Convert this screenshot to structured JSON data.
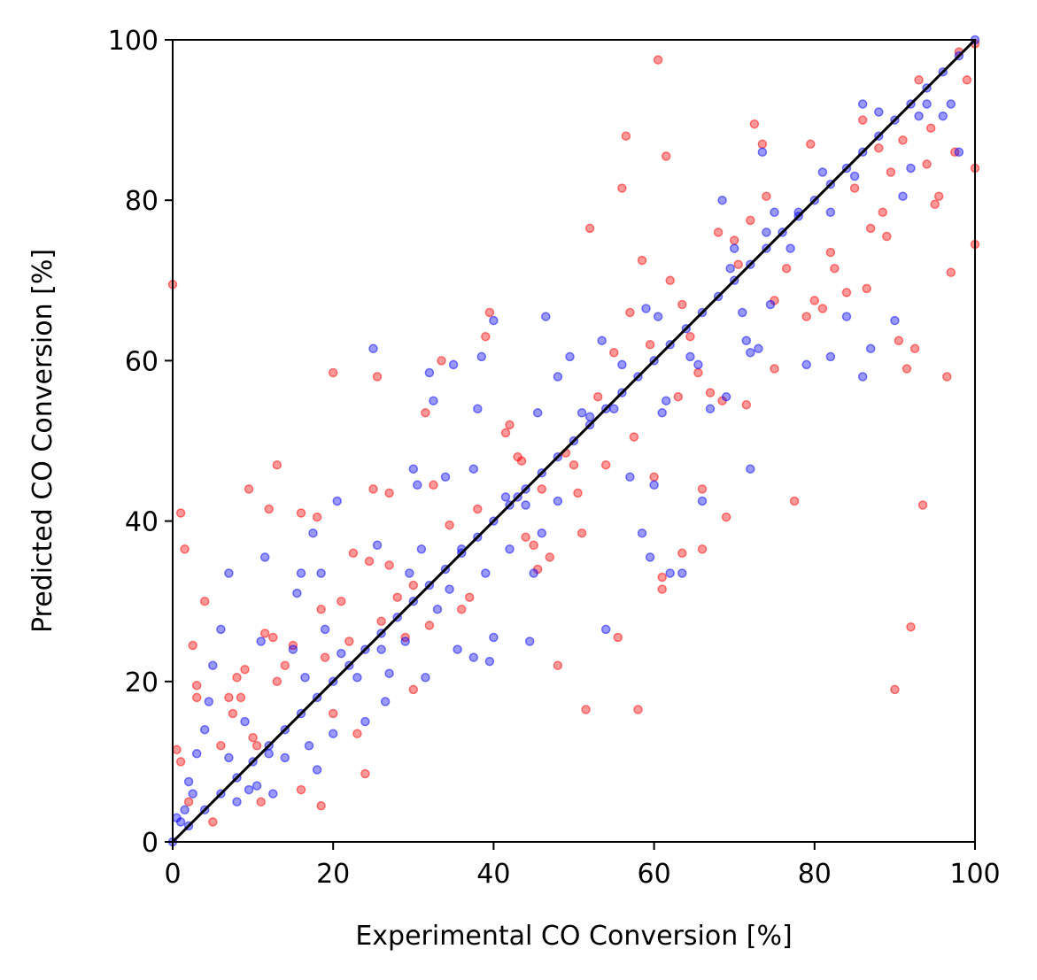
{
  "chart_data": {
    "type": "scatter",
    "title": "",
    "xlabel": "Experimental CO Conversion [%]",
    "ylabel": "Predicted CO Conversion [%]",
    "xlim": [
      0,
      100
    ],
    "ylim": [
      0,
      100
    ],
    "xticks": [
      "0",
      "20",
      "40",
      "60",
      "80",
      "100"
    ],
    "yticks": [
      "0",
      "20",
      "40",
      "60",
      "80",
      "100"
    ],
    "grid": false,
    "legend": "none",
    "parity_line": {
      "from": [
        0,
        0
      ],
      "to": [
        100,
        100
      ],
      "color": "#000000"
    },
    "series": [
      {
        "color": "#ff0000",
        "points": [
          [
            0,
            69.5
          ],
          [
            1,
            41
          ],
          [
            1.5,
            36.5
          ],
          [
            0.5,
            11.5
          ],
          [
            1,
            10
          ],
          [
            2,
            5
          ],
          [
            2.5,
            24.5
          ],
          [
            3,
            19.5
          ],
          [
            3,
            18
          ],
          [
            4,
            30
          ],
          [
            5,
            2.5
          ],
          [
            6,
            12
          ],
          [
            7,
            18
          ],
          [
            7.5,
            16
          ],
          [
            8,
            20.5
          ],
          [
            8.5,
            18
          ],
          [
            9,
            21.5
          ],
          [
            9.5,
            44
          ],
          [
            10,
            13
          ],
          [
            10.5,
            12
          ],
          [
            11,
            5
          ],
          [
            11.5,
            26
          ],
          [
            12,
            41.5
          ],
          [
            12.5,
            25.5
          ],
          [
            13,
            47
          ],
          [
            13,
            20
          ],
          [
            14,
            22
          ],
          [
            15,
            24.5
          ],
          [
            16,
            41
          ],
          [
            16,
            6.5
          ],
          [
            18,
            40.5
          ],
          [
            18.5,
            29
          ],
          [
            18.5,
            4.5
          ],
          [
            19,
            23
          ],
          [
            20,
            58.5
          ],
          [
            20,
            16
          ],
          [
            21,
            30
          ],
          [
            22,
            25
          ],
          [
            22.5,
            36
          ],
          [
            23,
            13.5
          ],
          [
            24,
            8.5
          ],
          [
            24.5,
            35
          ],
          [
            25,
            44
          ],
          [
            25.5,
            58
          ],
          [
            26,
            27.5
          ],
          [
            27,
            43.5
          ],
          [
            27,
            34.5
          ],
          [
            28,
            30.5
          ],
          [
            29,
            25.5
          ],
          [
            30,
            32
          ],
          [
            30,
            19
          ],
          [
            31.5,
            53.5
          ],
          [
            32,
            27
          ],
          [
            32.5,
            44.5
          ],
          [
            33.5,
            60
          ],
          [
            34.5,
            39.5
          ],
          [
            36,
            29
          ],
          [
            37,
            30.5
          ],
          [
            38,
            41.5
          ],
          [
            39,
            63
          ],
          [
            39.5,
            66
          ],
          [
            41.5,
            51
          ],
          [
            42,
            52
          ],
          [
            43,
            48
          ],
          [
            43.5,
            47.5
          ],
          [
            44,
            38
          ],
          [
            45,
            37
          ],
          [
            45.5,
            34
          ],
          [
            46,
            44
          ],
          [
            47,
            35.5
          ],
          [
            48,
            22
          ],
          [
            49,
            48.5
          ],
          [
            50,
            47
          ],
          [
            50.5,
            43.5
          ],
          [
            51,
            38.5
          ],
          [
            51.5,
            16.5
          ],
          [
            52,
            76.5
          ],
          [
            53,
            55.5
          ],
          [
            54,
            47
          ],
          [
            55,
            61
          ],
          [
            55.5,
            25.5
          ],
          [
            56,
            81.5
          ],
          [
            56.5,
            88
          ],
          [
            57,
            66
          ],
          [
            57.5,
            50.5
          ],
          [
            58,
            16.5
          ],
          [
            58.5,
            72.5
          ],
          [
            59.5,
            62
          ],
          [
            60,
            45.5
          ],
          [
            60.5,
            97.5
          ],
          [
            61,
            33
          ],
          [
            61,
            31.5
          ],
          [
            61.5,
            85.5
          ],
          [
            62,
            70
          ],
          [
            63,
            55.5
          ],
          [
            63.5,
            67
          ],
          [
            63.5,
            36
          ],
          [
            64.5,
            63
          ],
          [
            65.5,
            58.5
          ],
          [
            66,
            44
          ],
          [
            66,
            36.5
          ],
          [
            67,
            56
          ],
          [
            68,
            76
          ],
          [
            68.5,
            55
          ],
          [
            69,
            40.5
          ],
          [
            70,
            75
          ],
          [
            70.5,
            72
          ],
          [
            71.5,
            54.5
          ],
          [
            72,
            77.5
          ],
          [
            72.5,
            89.5
          ],
          [
            73.5,
            87
          ],
          [
            74,
            80.5
          ],
          [
            75,
            67.5
          ],
          [
            75,
            59
          ],
          [
            76.5,
            71.5
          ],
          [
            77.5,
            42.5
          ],
          [
            79,
            65.5
          ],
          [
            79.5,
            87
          ],
          [
            80,
            67.5
          ],
          [
            81,
            66.5
          ],
          [
            82,
            73.5
          ],
          [
            82.5,
            71.5
          ],
          [
            84,
            68.5
          ],
          [
            85,
            81.5
          ],
          [
            86,
            90
          ],
          [
            86.5,
            69
          ],
          [
            87,
            76.5
          ],
          [
            88,
            86.5
          ],
          [
            88.5,
            78.5
          ],
          [
            89,
            75.5
          ],
          [
            89.5,
            83.5
          ],
          [
            90,
            19
          ],
          [
            90.5,
            62.5
          ],
          [
            91,
            87.5
          ],
          [
            91.5,
            59
          ],
          [
            92,
            26.8
          ],
          [
            92.5,
            61.5
          ],
          [
            93,
            95
          ],
          [
            93.5,
            42
          ],
          [
            94,
            84.5
          ],
          [
            94.5,
            89
          ],
          [
            95,
            79.5
          ],
          [
            95.5,
            80.5
          ],
          [
            96.5,
            58
          ],
          [
            97,
            71
          ],
          [
            97.5,
            86
          ],
          [
            98,
            98.5
          ],
          [
            99,
            95
          ],
          [
            100,
            84
          ],
          [
            100,
            74.5
          ],
          [
            100,
            99.5
          ]
        ]
      },
      {
        "color": "#0000ff",
        "points": [
          [
            0.5,
            3
          ],
          [
            1,
            2.5
          ],
          [
            1.5,
            4
          ],
          [
            2,
            7.5
          ],
          [
            2.5,
            6
          ],
          [
            3,
            11
          ],
          [
            4,
            14
          ],
          [
            4.5,
            17.5
          ],
          [
            5,
            22
          ],
          [
            6,
            26.5
          ],
          [
            7,
            33.5
          ],
          [
            7,
            10.5
          ],
          [
            8,
            5
          ],
          [
            9,
            15
          ],
          [
            9.5,
            6.5
          ],
          [
            10.5,
            7
          ],
          [
            11,
            25
          ],
          [
            11.5,
            35.5
          ],
          [
            12,
            11
          ],
          [
            12.5,
            6
          ],
          [
            14,
            10.5
          ],
          [
            15,
            24
          ],
          [
            15.5,
            31
          ],
          [
            16,
            33.5
          ],
          [
            16.5,
            20.5
          ],
          [
            17,
            12
          ],
          [
            17.5,
            38.5
          ],
          [
            18,
            9
          ],
          [
            18.5,
            33.5
          ],
          [
            19,
            26.5
          ],
          [
            20,
            13.5
          ],
          [
            20.5,
            42.5
          ],
          [
            21,
            23.5
          ],
          [
            23,
            20.5
          ],
          [
            24,
            15
          ],
          [
            25,
            61.5
          ],
          [
            25.5,
            37
          ],
          [
            26,
            24
          ],
          [
            26.5,
            17.5
          ],
          [
            27,
            21
          ],
          [
            29,
            25
          ],
          [
            29.5,
            33.5
          ],
          [
            30,
            46.5
          ],
          [
            30.5,
            44.5
          ],
          [
            31,
            36.5
          ],
          [
            31.5,
            20.5
          ],
          [
            32,
            58.5
          ],
          [
            32.5,
            55
          ],
          [
            33,
            29
          ],
          [
            34,
            45.5
          ],
          [
            34.5,
            31.5
          ],
          [
            35,
            59.5
          ],
          [
            35.5,
            24
          ],
          [
            36,
            36.5
          ],
          [
            37.5,
            23
          ],
          [
            37.5,
            46.5
          ],
          [
            38,
            54
          ],
          [
            38.5,
            60.5
          ],
          [
            39,
            33.5
          ],
          [
            39.5,
            22.5
          ],
          [
            40,
            65
          ],
          [
            40,
            25.5
          ],
          [
            41.5,
            43
          ],
          [
            42,
            36.5
          ],
          [
            43,
            43
          ],
          [
            44,
            42
          ],
          [
            44.5,
            25
          ],
          [
            45,
            33.5
          ],
          [
            45.5,
            53.5
          ],
          [
            46,
            38.5
          ],
          [
            46.5,
            65.5
          ],
          [
            48,
            58
          ],
          [
            48,
            42.5
          ],
          [
            49.5,
            60.5
          ],
          [
            51,
            53.5
          ],
          [
            52,
            53
          ],
          [
            53.5,
            62.5
          ],
          [
            54,
            26.5
          ],
          [
            55,
            54
          ],
          [
            56,
            59.5
          ],
          [
            57,
            45.5
          ],
          [
            58.5,
            38.5
          ],
          [
            59,
            66.5
          ],
          [
            59.5,
            35.5
          ],
          [
            60,
            44.5
          ],
          [
            60.5,
            65.5
          ],
          [
            61,
            53.5
          ],
          [
            61.5,
            55
          ],
          [
            62,
            33.5
          ],
          [
            63.5,
            33.5
          ],
          [
            64.5,
            60.5
          ],
          [
            65.5,
            59.5
          ],
          [
            66,
            42.5
          ],
          [
            67,
            54
          ],
          [
            68.5,
            80
          ],
          [
            69,
            55.5
          ],
          [
            69.5,
            71.5
          ],
          [
            70,
            74
          ],
          [
            71,
            66
          ],
          [
            71.5,
            62.5
          ],
          [
            72,
            61
          ],
          [
            72,
            46.5
          ],
          [
            73,
            61.5
          ],
          [
            73.5,
            86
          ],
          [
            74,
            76
          ],
          [
            74.5,
            67
          ],
          [
            75,
            78.5
          ],
          [
            77,
            74
          ],
          [
            78,
            78.5
          ],
          [
            79,
            59.5
          ],
          [
            81,
            83.5
          ],
          [
            82,
            60.5
          ],
          [
            82,
            78.5
          ],
          [
            84,
            65.5
          ],
          [
            85,
            83
          ],
          [
            86,
            92
          ],
          [
            86,
            58
          ],
          [
            87,
            61.5
          ],
          [
            88,
            91
          ],
          [
            90,
            65
          ],
          [
            91,
            80.5
          ],
          [
            92,
            84
          ],
          [
            93,
            90.5
          ],
          [
            94,
            92
          ],
          [
            96,
            90.5
          ],
          [
            97,
            92
          ],
          [
            98,
            86
          ]
        ]
      },
      {
        "color": "#0000ff",
        "points": [
          [
            0,
            0
          ],
          [
            2,
            2
          ],
          [
            4,
            4
          ],
          [
            6,
            6
          ],
          [
            8,
            8
          ],
          [
            10,
            10
          ],
          [
            12,
            12
          ],
          [
            14,
            14
          ],
          [
            16,
            16
          ],
          [
            18,
            18
          ],
          [
            20,
            20
          ],
          [
            22,
            22
          ],
          [
            24,
            24
          ],
          [
            26,
            26
          ],
          [
            28,
            28
          ],
          [
            30,
            30
          ],
          [
            32,
            32
          ],
          [
            34,
            34
          ],
          [
            36,
            36
          ],
          [
            38,
            38
          ],
          [
            40,
            40
          ],
          [
            42,
            42
          ],
          [
            44,
            44
          ],
          [
            46,
            46
          ],
          [
            48,
            48
          ],
          [
            50,
            50
          ],
          [
            52,
            52
          ],
          [
            54,
            54
          ],
          [
            56,
            56
          ],
          [
            58,
            58
          ],
          [
            60,
            60
          ],
          [
            62,
            62
          ],
          [
            64,
            64
          ],
          [
            66,
            66
          ],
          [
            68,
            68
          ],
          [
            70,
            70
          ],
          [
            72,
            72
          ],
          [
            74,
            74
          ],
          [
            76,
            76
          ],
          [
            78,
            78
          ],
          [
            80,
            80
          ],
          [
            82,
            82
          ],
          [
            84,
            84
          ],
          [
            86,
            86
          ],
          [
            88,
            88
          ],
          [
            90,
            90
          ],
          [
            92,
            92
          ],
          [
            94,
            94
          ],
          [
            96,
            96
          ],
          [
            98,
            98
          ],
          [
            100,
            100
          ]
        ]
      }
    ]
  },
  "colors": {
    "background": "#ffffff",
    "axes": "#000000"
  }
}
